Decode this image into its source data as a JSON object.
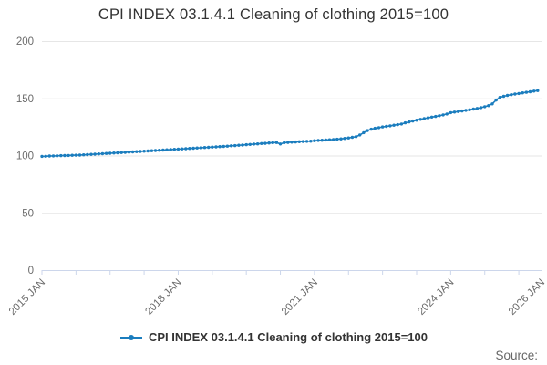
{
  "title": "CPI INDEX 03.1.4.1 Cleaning of clothing 2015=100",
  "legend": {
    "label": "CPI INDEX 03.1.4.1 Cleaning of clothing 2015=100"
  },
  "source": {
    "label": "Source:"
  },
  "colors": {
    "series": "#1b7dbe",
    "grid": "#e6e6e6",
    "axis": "#ccd6eb",
    "tick_label": "#6b6b6b",
    "title": "#333333"
  },
  "chart_data": {
    "type": "line",
    "title": "CPI INDEX 03.1.4.1 Cleaning of clothing 2015=100",
    "series_name": "CPI INDEX 03.1.4.1 Cleaning of clothing 2015=100",
    "frequency": "monthly",
    "x_start": "2015 JAN",
    "x_end": "2026 JAN",
    "total_months": 132,
    "tick_interval_months": 9,
    "x_tick_labels": [
      {
        "month": 0,
        "label": "2015 JAN"
      },
      {
        "month": 36,
        "label": "2018 JAN"
      },
      {
        "month": 72,
        "label": "2021 JAN"
      },
      {
        "month": 108,
        "label": "2024 JAN"
      },
      {
        "month": 132,
        "label": "2026 JAN"
      }
    ],
    "ylim": [
      0,
      200
    ],
    "yticks": [
      0,
      50,
      100,
      150,
      200
    ],
    "grid": true,
    "legend_position": "bottom",
    "values": [
      99.3,
      99.4,
      99.6,
      99.7,
      99.8,
      99.9,
      100.0,
      100.1,
      100.2,
      100.3,
      100.4,
      100.6,
      100.8,
      101.0,
      101.2,
      101.4,
      101.6,
      101.8,
      102.0,
      102.2,
      102.4,
      102.6,
      102.8,
      103.0,
      103.2,
      103.4,
      103.6,
      103.8,
      104.0,
      104.2,
      104.4,
      104.6,
      104.8,
      105.0,
      105.2,
      105.4,
      105.6,
      105.8,
      106.0,
      106.2,
      106.4,
      106.6,
      106.8,
      107.0,
      107.2,
      107.4,
      107.6,
      107.8,
      108.0,
      108.2,
      108.5,
      108.7,
      109.0,
      109.2,
      109.5,
      109.7,
      110.0,
      110.2,
      110.5,
      110.7,
      111.0,
      111.2,
      111.4,
      110.1,
      111.2,
      111.5,
      111.7,
      111.9,
      112.1,
      112.3,
      112.4,
      112.6,
      113.0,
      113.2,
      113.4,
      113.6,
      113.8,
      114.0,
      114.3,
      114.6,
      115.0,
      115.4,
      115.9,
      116.5,
      118.0,
      120.0,
      121.8,
      123.0,
      123.8,
      124.4,
      125.0,
      125.5,
      126.0,
      126.5,
      127.0,
      127.6,
      128.6,
      129.4,
      130.2,
      130.9,
      131.6,
      132.3,
      133.0,
      133.6,
      134.2,
      134.8,
      135.5,
      136.3,
      137.5,
      138.0,
      138.5,
      139.0,
      139.5,
      140.0,
      140.6,
      141.2,
      141.9,
      142.7,
      143.7,
      145.2,
      148.5,
      150.8,
      151.8,
      152.6,
      153.2,
      153.8,
      154.3,
      154.8,
      155.3,
      155.8,
      156.3,
      156.8
    ]
  }
}
